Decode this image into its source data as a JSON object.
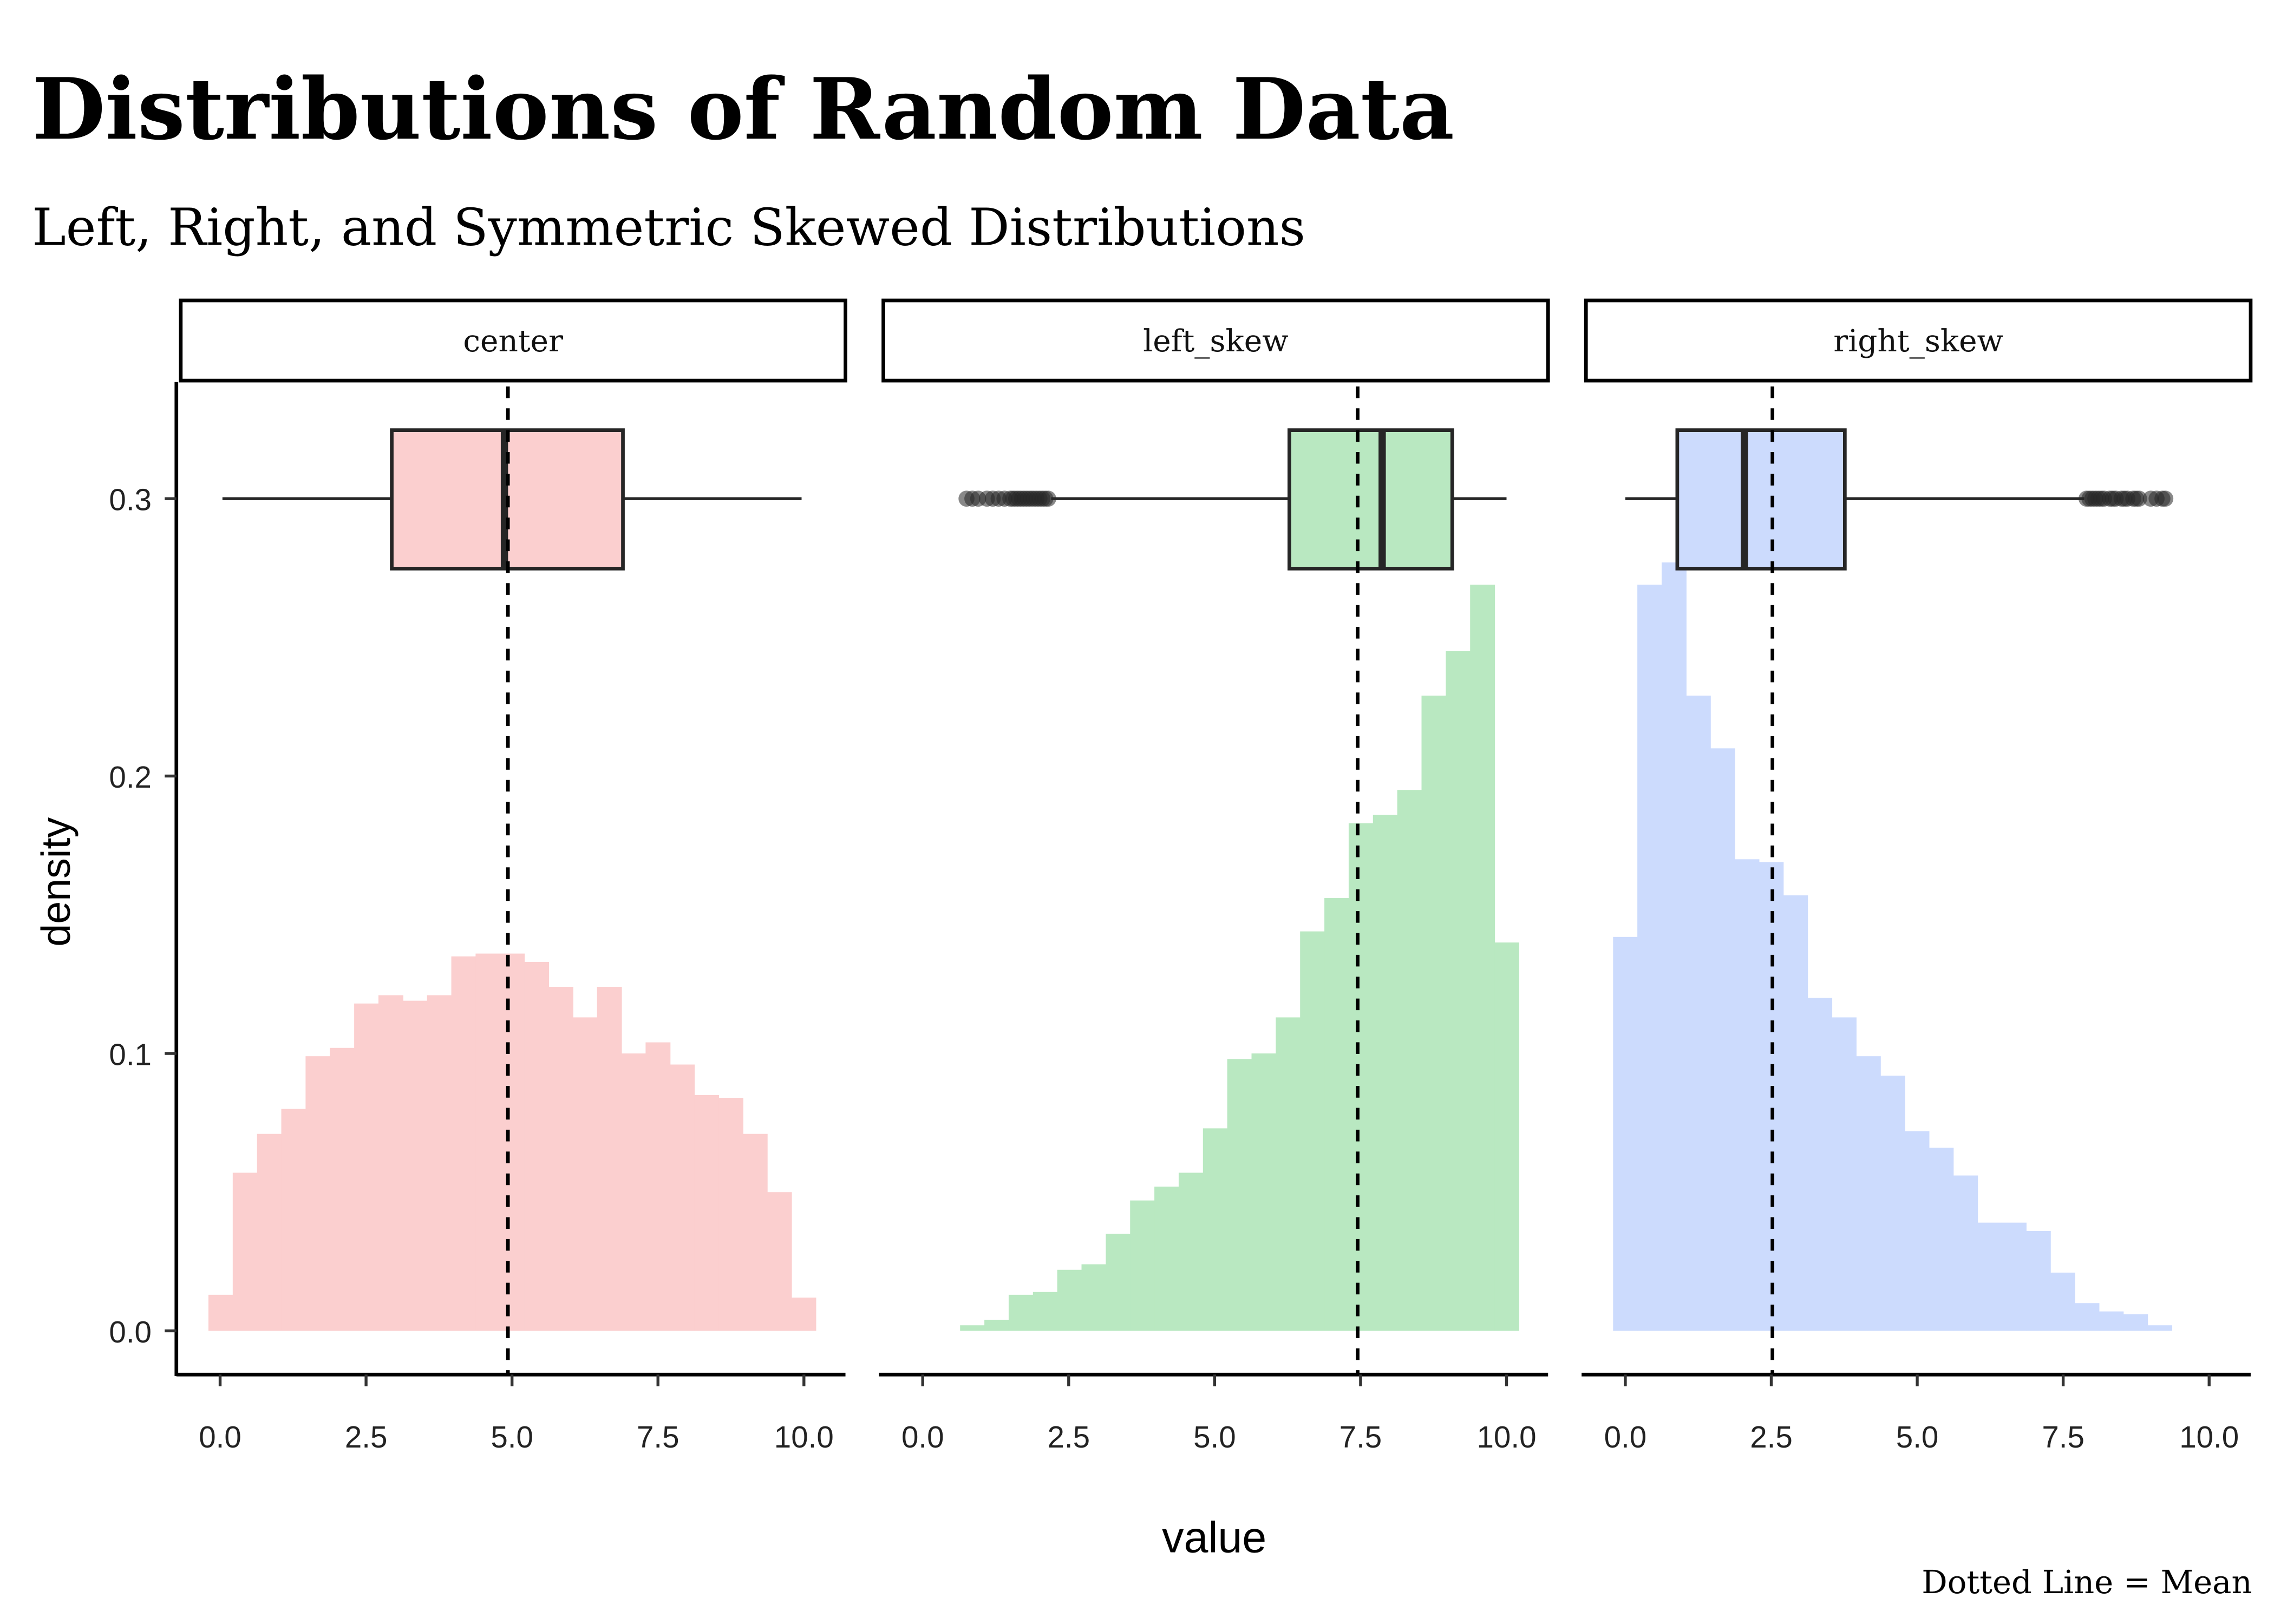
{
  "chart_data": {
    "type": "histogram+boxplot",
    "title": "Distributions of Random Data",
    "subtitle": "Left, Right, and Symmetric Skewed Distributions",
    "xlabel": "value",
    "ylabel": "density",
    "caption": "Dotted Line = Mean",
    "xlim": [
      -0.5,
      10.7
    ],
    "ylim": [
      0,
      0.3
    ],
    "x_ticks": [
      0,
      2.5,
      5,
      7.5,
      10
    ],
    "x_tick_labels": [
      "0.0",
      "2.5",
      "5.0",
      "7.5",
      "10.0"
    ],
    "y_ticks": [
      0,
      0.1,
      0.2,
      0.3
    ],
    "y_tick_labels": [
      "0.0",
      "0.1",
      "0.2",
      "0.3"
    ],
    "grid": false,
    "bin_width": 0.416,
    "boxplot_y": 0.3,
    "panels": [
      {
        "name": "center",
        "color": "#FBCFCF",
        "bin_start": -0.2,
        "density": [
          0.013,
          0.057,
          0.071,
          0.08,
          0.099,
          0.102,
          0.118,
          0.121,
          0.119,
          0.121,
          0.135,
          0.136,
          0.136,
          0.133,
          0.124,
          0.113,
          0.124,
          0.1,
          0.104,
          0.096,
          0.085,
          0.084,
          0.071,
          0.05,
          0.012
        ],
        "mean": 4.93,
        "box": {
          "whisker_low": 0.04,
          "q1": 2.94,
          "median": 4.87,
          "q3": 6.9,
          "whisker_high": 9.96
        },
        "outliers": []
      },
      {
        "name": "left_skew",
        "color": "#B9E8C1",
        "bin_start": 0.64,
        "density": [
          0.002,
          0.004,
          0.013,
          0.014,
          0.022,
          0.024,
          0.035,
          0.047,
          0.052,
          0.057,
          0.073,
          0.098,
          0.1,
          0.113,
          0.144,
          0.156,
          0.183,
          0.186,
          0.195,
          0.229,
          0.245,
          0.269,
          0.14
        ],
        "mean": 7.45,
        "box": {
          "whisker_low": 2.2,
          "q1": 6.28,
          "median": 7.87,
          "q3": 9.07,
          "whisker_high": 10.0
        },
        "outliers": [
          0.75,
          0.85,
          0.95,
          1.1,
          1.2,
          1.3,
          1.4,
          1.5,
          1.55,
          1.6,
          1.65,
          1.7,
          1.75,
          1.8,
          1.85,
          1.9,
          1.95,
          2.0,
          2.05,
          2.1,
          2.15
        ]
      },
      {
        "name": "right_skew",
        "color": "#CCDBFD",
        "bin_start": -0.21,
        "density": [
          0.142,
          0.269,
          0.277,
          0.229,
          0.21,
          0.17,
          0.169,
          0.157,
          0.12,
          0.113,
          0.099,
          0.092,
          0.072,
          0.066,
          0.056,
          0.039,
          0.039,
          0.036,
          0.021,
          0.01,
          0.007,
          0.006,
          0.002
        ],
        "mean": 2.52,
        "box": {
          "whisker_low": 0.0,
          "q1": 0.89,
          "median": 2.04,
          "q3": 3.76,
          "whisker_high": 7.86
        },
        "outliers": [
          7.9,
          7.95,
          8.0,
          8.05,
          8.1,
          8.15,
          8.2,
          8.3,
          8.35,
          8.4,
          8.5,
          8.55,
          8.6,
          8.7,
          8.75,
          8.8,
          9.0,
          9.1,
          9.2,
          9.25
        ]
      }
    ]
  }
}
